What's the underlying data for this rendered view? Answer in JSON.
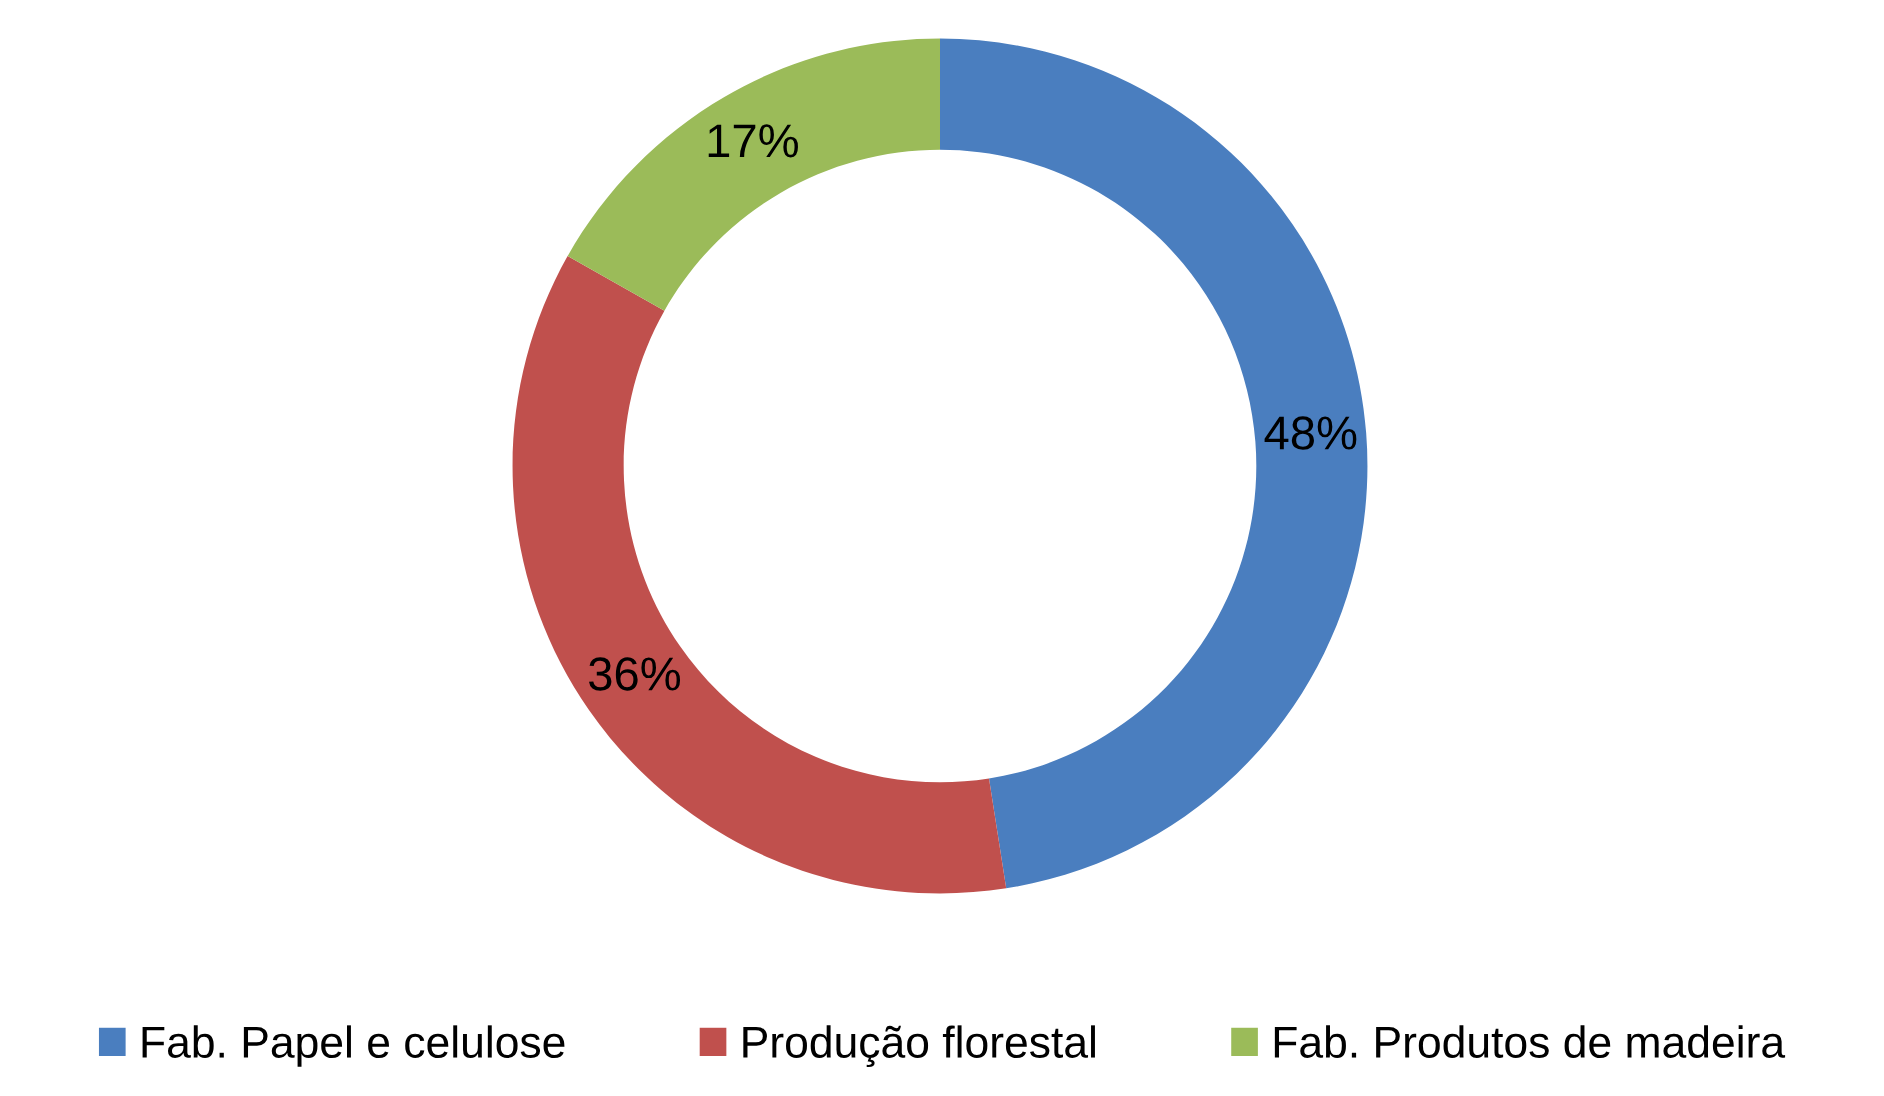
{
  "chart_data": {
    "type": "donut",
    "categories": [
      "Fab. Papel e celulose",
      "Produção florestal",
      "Fab. Produtos de madeira"
    ],
    "values": [
      48,
      36,
      17
    ],
    "colors": [
      "#4a7ebf",
      "#c0504d",
      "#9bbb59"
    ],
    "value_labels": [
      "48%",
      "36%",
      "17%"
    ],
    "legend": "bottom"
  }
}
